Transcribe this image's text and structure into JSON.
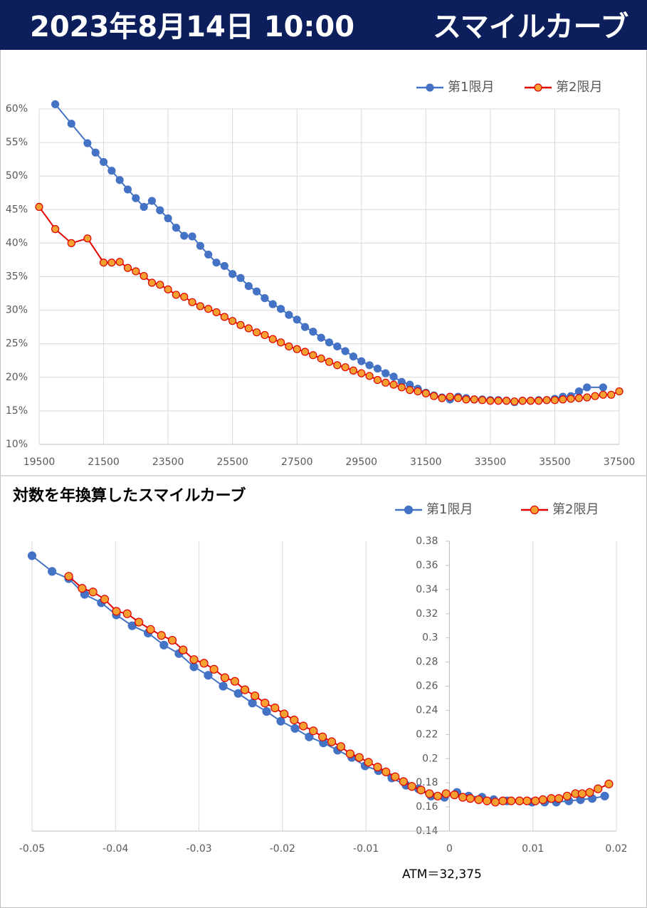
{
  "header": {
    "date": "2023年8月14日 10:00",
    "title": "スマイルカーブ"
  },
  "chart_data": [
    {
      "type": "line",
      "xlim": [
        19500,
        37500
      ],
      "xticks": [
        19500,
        21500,
        23500,
        25500,
        27500,
        29500,
        31500,
        33500,
        35500,
        37500
      ],
      "ylim": [
        10,
        60
      ],
      "yticks": [
        {
          "value": 10,
          "label": "10%"
        },
        {
          "value": 15,
          "label": "15%"
        },
        {
          "value": 20,
          "label": "20%"
        },
        {
          "value": 25,
          "label": "25%"
        },
        {
          "value": 30,
          "label": "30%"
        },
        {
          "value": 35,
          "label": "35%"
        },
        {
          "value": 40,
          "label": "40%"
        },
        {
          "value": 45,
          "label": "45%"
        },
        {
          "value": 50,
          "label": "50%"
        },
        {
          "value": 55,
          "label": "55%"
        },
        {
          "value": 60,
          "label": "60%"
        }
      ],
      "xgrid": true,
      "ygrid": true,
      "legend": "top-right",
      "series": [
        {
          "name": "第1限月",
          "color": "#4472c4",
          "marker_fill": "#4472c4",
          "x": [
            20000,
            20500,
            21000,
            21250,
            21500,
            21750,
            22000,
            22250,
            22500,
            22750,
            23000,
            23250,
            23500,
            23750,
            24000,
            24250,
            24500,
            24750,
            25000,
            25250,
            25500,
            25750,
            26000,
            26250,
            26500,
            26750,
            27000,
            27250,
            27500,
            27750,
            28000,
            28250,
            28500,
            28750,
            29000,
            29250,
            29500,
            29750,
            30000,
            30250,
            30500,
            30750,
            31000,
            31250,
            31500,
            31750,
            32000,
            32250,
            32500,
            32750,
            33000,
            33250,
            33500,
            33750,
            34000,
            34250,
            34500,
            34750,
            35000,
            35250,
            35500,
            35750,
            36000,
            36250,
            36500,
            37000
          ],
          "values": [
            60.7,
            57.8,
            54.9,
            53.5,
            52.1,
            50.8,
            49.4,
            48.0,
            46.7,
            45.4,
            46.3,
            44.9,
            43.7,
            42.3,
            41.1,
            41.0,
            39.6,
            38.3,
            37.1,
            36.6,
            35.4,
            34.8,
            33.6,
            32.8,
            31.8,
            30.9,
            30.2,
            29.3,
            28.6,
            27.5,
            26.8,
            25.9,
            25.2,
            24.6,
            23.9,
            23.1,
            22.4,
            21.8,
            21.3,
            20.6,
            20.1,
            19.3,
            18.9,
            18.3,
            17.7,
            17.3,
            17.0,
            16.7,
            17.1,
            16.9,
            16.7,
            16.7,
            16.6,
            16.6,
            16.5,
            16.3,
            16.5,
            16.5,
            16.6,
            16.6,
            16.8,
            17.1,
            17.2,
            17.9,
            18.5,
            18.5
          ]
        },
        {
          "name": "第2限月",
          "color": "#e00000",
          "marker_fill": "#f5a030",
          "x": [
            19500,
            20000,
            20500,
            21000,
            21500,
            21750,
            22000,
            22250,
            22500,
            22750,
            23000,
            23250,
            23500,
            23750,
            24000,
            24250,
            24500,
            24750,
            25000,
            25250,
            25500,
            25750,
            26000,
            26250,
            26500,
            26750,
            27000,
            27250,
            27500,
            27750,
            28000,
            28250,
            28500,
            28750,
            29000,
            29250,
            29500,
            29750,
            30000,
            30250,
            30500,
            30750,
            31000,
            31250,
            31500,
            31750,
            32000,
            32250,
            32500,
            32750,
            33000,
            33250,
            33500,
            33750,
            34000,
            34250,
            34500,
            34750,
            35000,
            35250,
            35500,
            35750,
            36000,
            36250,
            36500,
            36750,
            37000,
            37250,
            37500
          ],
          "values": [
            45.4,
            42.1,
            40.0,
            40.7,
            37.1,
            37.1,
            37.2,
            36.3,
            35.8,
            35.1,
            34.1,
            33.8,
            33.1,
            32.3,
            32.0,
            31.2,
            30.6,
            30.2,
            29.7,
            29.0,
            28.4,
            27.8,
            27.3,
            26.7,
            26.3,
            25.7,
            25.2,
            24.6,
            24.2,
            23.8,
            23.3,
            22.8,
            22.3,
            21.8,
            21.5,
            21.0,
            20.6,
            20.2,
            19.6,
            19.2,
            18.9,
            18.5,
            18.1,
            17.9,
            17.6,
            17.2,
            16.9,
            17.1,
            16.9,
            16.7,
            16.7,
            16.6,
            16.5,
            16.5,
            16.5,
            16.4,
            16.5,
            16.5,
            16.5,
            16.6,
            16.6,
            16.7,
            16.8,
            16.9,
            17.0,
            17.2,
            17.4,
            17.4,
            17.9
          ]
        }
      ]
    },
    {
      "type": "line",
      "title": "対数を年換算したスマイルカーブ",
      "annotation": "ATM＝32,375",
      "xlim": [
        -0.05,
        0.02
      ],
      "xticks": [
        -0.05,
        -0.04,
        -0.03,
        -0.02,
        -0.01,
        0,
        0.01,
        0.02
      ],
      "ylim": [
        0.14,
        0.38
      ],
      "yticks": [
        0.14,
        0.16,
        0.18,
        0.2,
        0.22,
        0.24,
        0.26,
        0.28,
        0.3,
        0.32,
        0.34,
        0.36,
        0.38
      ],
      "y_axis_crosses": 0,
      "xgrid": true,
      "ygrid": false,
      "legend": "top-right",
      "series": [
        {
          "name": "第1限月",
          "color": "#4472c4",
          "marker_fill": "#4472c4",
          "x": [
            -0.05,
            -0.0476,
            -0.0456,
            -0.0437,
            -0.0417,
            -0.0399,
            -0.038,
            -0.0361,
            -0.0342,
            -0.0324,
            -0.0306,
            -0.0289,
            -0.0271,
            -0.0253,
            -0.0236,
            -0.0219,
            -0.0202,
            -0.0185,
            -0.0168,
            -0.0151,
            -0.0134,
            -0.0117,
            -0.0101,
            -0.0085,
            -0.0069,
            -0.0052,
            -0.0037,
            -0.0022,
            -0.0006,
            0.0009,
            0.0023,
            0.0039,
            0.0053,
            0.0069,
            0.0084,
            0.0099,
            0.0114,
            0.0128,
            0.0143,
            0.0157,
            0.0171,
            0.0186
          ],
          "values": [
            0.368,
            0.355,
            0.349,
            0.336,
            0.329,
            0.319,
            0.31,
            0.304,
            0.294,
            0.287,
            0.276,
            0.269,
            0.26,
            0.254,
            0.246,
            0.239,
            0.231,
            0.225,
            0.218,
            0.213,
            0.207,
            0.201,
            0.194,
            0.19,
            0.184,
            0.178,
            0.175,
            0.169,
            0.168,
            0.172,
            0.169,
            0.168,
            0.166,
            0.165,
            0.165,
            0.164,
            0.164,
            0.164,
            0.165,
            0.166,
            0.167,
            0.169
          ]
        },
        {
          "name": "第2限月",
          "color": "#e00000",
          "marker_fill": "#f5a030",
          "x": [
            -0.0456,
            -0.044,
            -0.0427,
            -0.0413,
            -0.0399,
            -0.0386,
            -0.0372,
            -0.0358,
            -0.0345,
            -0.0332,
            -0.0319,
            -0.0306,
            -0.0294,
            -0.0282,
            -0.0269,
            -0.0257,
            -0.0245,
            -0.0233,
            -0.0221,
            -0.0209,
            -0.0198,
            -0.0186,
            -0.0175,
            -0.0163,
            -0.0152,
            -0.0141,
            -0.013,
            -0.0119,
            -0.0108,
            -0.0097,
            -0.0086,
            -0.0076,
            -0.0065,
            -0.0055,
            -0.0045,
            -0.0034,
            -0.0024,
            -0.0014,
            -0.0004,
            0.0006,
            0.0016,
            0.0025,
            0.0035,
            0.0045,
            0.0055,
            0.0064,
            0.0074,
            0.0084,
            0.0093,
            0.0103,
            0.0112,
            0.0122,
            0.0131,
            0.0141,
            0.0151,
            0.0159,
            0.0168,
            0.0178,
            0.0191
          ],
          "values": [
            0.351,
            0.341,
            0.338,
            0.332,
            0.322,
            0.32,
            0.313,
            0.307,
            0.302,
            0.298,
            0.29,
            0.282,
            0.279,
            0.274,
            0.267,
            0.264,
            0.257,
            0.252,
            0.246,
            0.242,
            0.237,
            0.232,
            0.227,
            0.223,
            0.218,
            0.214,
            0.21,
            0.204,
            0.201,
            0.197,
            0.193,
            0.189,
            0.185,
            0.181,
            0.177,
            0.174,
            0.171,
            0.169,
            0.171,
            0.17,
            0.168,
            0.167,
            0.166,
            0.165,
            0.164,
            0.165,
            0.165,
            0.165,
            0.165,
            0.165,
            0.166,
            0.167,
            0.167,
            0.169,
            0.171,
            0.171,
            0.172,
            0.175,
            0.179
          ]
        }
      ]
    }
  ]
}
